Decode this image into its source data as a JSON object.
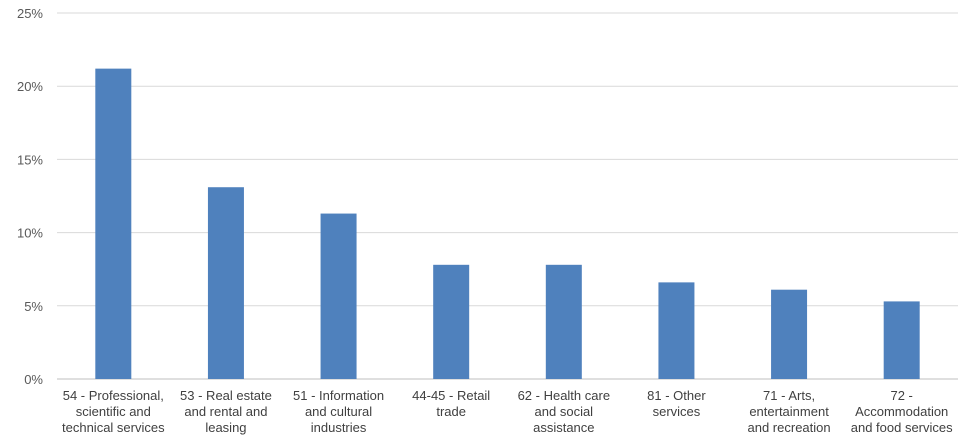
{
  "chart_data": {
    "type": "bar",
    "title": "",
    "xlabel": "",
    "ylabel": "",
    "ylim": [
      0,
      25
    ],
    "yticks": [
      "0%",
      "5%",
      "10%",
      "15%",
      "20%",
      "25%"
    ],
    "grid": true,
    "bar_color": "#4F81BD",
    "grid_color": "#D9D9D9",
    "categories": [
      [
        "54 - Professional,",
        "scientific and",
        "technical services"
      ],
      [
        "53 - Real estate",
        "and rental and",
        "leasing"
      ],
      [
        "51 - Information",
        "and cultural",
        "industries"
      ],
      [
        "44-45 - Retail",
        "trade"
      ],
      [
        "62 - Health care",
        "and social",
        "assistance"
      ],
      [
        "81 - Other",
        "services"
      ],
      [
        "71 - Arts,",
        "entertainment",
        "and recreation"
      ],
      [
        "72 -",
        "Accommodation",
        "and food services"
      ]
    ],
    "values": [
      21.2,
      13.1,
      11.3,
      7.8,
      7.8,
      6.6,
      6.1,
      5.3
    ]
  }
}
